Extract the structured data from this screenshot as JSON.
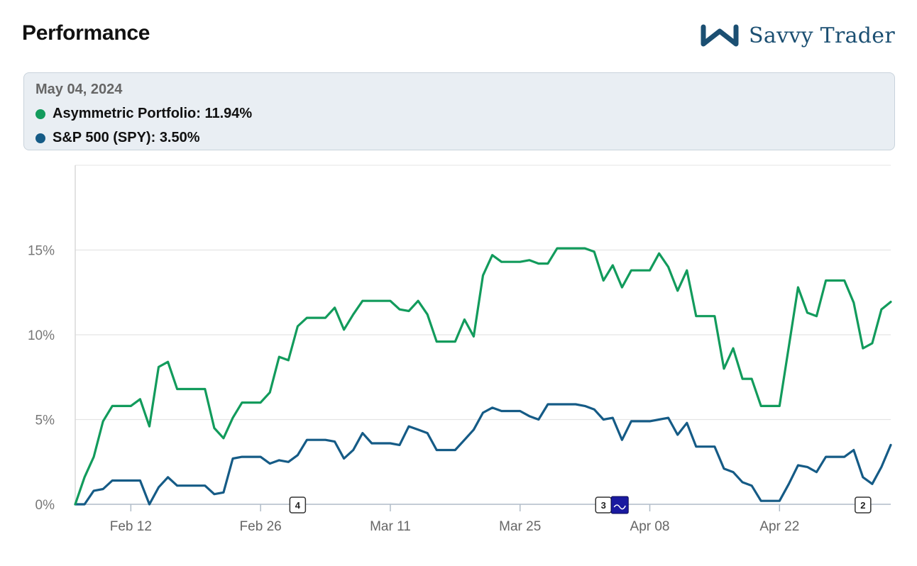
{
  "header": {
    "title": "Performance",
    "brand_name": "Savvy Trader",
    "brand_color": "#1b4f72"
  },
  "tooltip": {
    "date": "May 04, 2024",
    "series": [
      {
        "name": "Asymmetric Portfolio",
        "value": "11.94%",
        "color": "#129b5c"
      },
      {
        "name": "S&P 500 (SPY)",
        "value": "3.50%",
        "color": "#155b86"
      }
    ]
  },
  "chart_data": {
    "type": "line",
    "xlabel": "",
    "ylabel": "",
    "xlim": [
      "2024-02-06",
      "2024-05-04"
    ],
    "ylim": [
      0,
      20
    ],
    "y_ticks": [
      0,
      5,
      10,
      15
    ],
    "y_tick_labels": [
      "0%",
      "5%",
      "10%",
      "15%"
    ],
    "x_ticks": [
      "2024-02-12",
      "2024-02-26",
      "2024-03-11",
      "2024-03-25",
      "2024-04-08",
      "2024-04-22"
    ],
    "x_tick_labels": [
      "Feb 12",
      "Feb 26",
      "Mar 11",
      "Mar 25",
      "Apr 08",
      "Apr 22"
    ],
    "grid": "horizontal",
    "legend": "top",
    "series": [
      {
        "name": "Asymmetric Portfolio",
        "color": "#129b5c",
        "points": [
          [
            "2024-02-06",
            0
          ],
          [
            "2024-02-07",
            1.6
          ],
          [
            "2024-02-08",
            2.8
          ],
          [
            "2024-02-09",
            4.9
          ],
          [
            "2024-02-10",
            5.8
          ],
          [
            "2024-02-11",
            5.8
          ],
          [
            "2024-02-12",
            5.8
          ],
          [
            "2024-02-13",
            6.2
          ],
          [
            "2024-02-14",
            4.6
          ],
          [
            "2024-02-15",
            8.1
          ],
          [
            "2024-02-16",
            8.4
          ],
          [
            "2024-02-17",
            6.8
          ],
          [
            "2024-02-18",
            6.8
          ],
          [
            "2024-02-19",
            6.8
          ],
          [
            "2024-02-20",
            6.8
          ],
          [
            "2024-02-21",
            4.5
          ],
          [
            "2024-02-22",
            3.9
          ],
          [
            "2024-02-23",
            5.1
          ],
          [
            "2024-02-24",
            6.0
          ],
          [
            "2024-02-25",
            6.0
          ],
          [
            "2024-02-26",
            6.0
          ],
          [
            "2024-02-27",
            6.6
          ],
          [
            "2024-02-28",
            8.7
          ],
          [
            "2024-02-29",
            8.5
          ],
          [
            "2024-03-01",
            10.5
          ],
          [
            "2024-03-02",
            11.0
          ],
          [
            "2024-03-03",
            11.0
          ],
          [
            "2024-03-04",
            11.0
          ],
          [
            "2024-03-05",
            11.6
          ],
          [
            "2024-03-06",
            10.3
          ],
          [
            "2024-03-07",
            11.2
          ],
          [
            "2024-03-08",
            12.0
          ],
          [
            "2024-03-09",
            12.0
          ],
          [
            "2024-03-10",
            12.0
          ],
          [
            "2024-03-11",
            12.0
          ],
          [
            "2024-03-12",
            11.5
          ],
          [
            "2024-03-13",
            11.4
          ],
          [
            "2024-03-14",
            12.0
          ],
          [
            "2024-03-15",
            11.2
          ],
          [
            "2024-03-16",
            9.6
          ],
          [
            "2024-03-17",
            9.6
          ],
          [
            "2024-03-18",
            9.6
          ],
          [
            "2024-03-19",
            10.9
          ],
          [
            "2024-03-20",
            9.9
          ],
          [
            "2024-03-21",
            13.5
          ],
          [
            "2024-03-22",
            14.7
          ],
          [
            "2024-03-23",
            14.3
          ],
          [
            "2024-03-24",
            14.3
          ],
          [
            "2024-03-25",
            14.3
          ],
          [
            "2024-03-26",
            14.4
          ],
          [
            "2024-03-27",
            14.2
          ],
          [
            "2024-03-28",
            14.2
          ],
          [
            "2024-03-29",
            15.1
          ],
          [
            "2024-03-30",
            15.1
          ],
          [
            "2024-03-31",
            15.1
          ],
          [
            "2024-04-01",
            15.1
          ],
          [
            "2024-04-02",
            14.9
          ],
          [
            "2024-04-03",
            13.2
          ],
          [
            "2024-04-04",
            14.1
          ],
          [
            "2024-04-05",
            12.8
          ],
          [
            "2024-04-06",
            13.8
          ],
          [
            "2024-04-07",
            13.8
          ],
          [
            "2024-04-08",
            13.8
          ],
          [
            "2024-04-09",
            14.8
          ],
          [
            "2024-04-10",
            14.0
          ],
          [
            "2024-04-11",
            12.6
          ],
          [
            "2024-04-12",
            13.8
          ],
          [
            "2024-04-13",
            11.1
          ],
          [
            "2024-04-14",
            11.1
          ],
          [
            "2024-04-15",
            11.1
          ],
          [
            "2024-04-16",
            8.0
          ],
          [
            "2024-04-17",
            9.2
          ],
          [
            "2024-04-18",
            7.4
          ],
          [
            "2024-04-19",
            7.4
          ],
          [
            "2024-04-20",
            5.8
          ],
          [
            "2024-04-21",
            5.8
          ],
          [
            "2024-04-22",
            5.8
          ],
          [
            "2024-04-23",
            9.3
          ],
          [
            "2024-04-24",
            12.8
          ],
          [
            "2024-04-25",
            11.3
          ],
          [
            "2024-04-26",
            11.1
          ],
          [
            "2024-04-27",
            13.2
          ],
          [
            "2024-04-28",
            13.2
          ],
          [
            "2024-04-29",
            13.2
          ],
          [
            "2024-04-30",
            11.9
          ],
          [
            "2024-05-01",
            9.2
          ],
          [
            "2024-05-02",
            9.5
          ],
          [
            "2024-05-03",
            11.5
          ],
          [
            "2024-05-04",
            11.94
          ]
        ]
      },
      {
        "name": "S&P 500 (SPY)",
        "color": "#155b86",
        "points": [
          [
            "2024-02-06",
            0
          ],
          [
            "2024-02-07",
            0
          ],
          [
            "2024-02-08",
            0.8
          ],
          [
            "2024-02-09",
            0.9
          ],
          [
            "2024-02-10",
            1.4
          ],
          [
            "2024-02-11",
            1.4
          ],
          [
            "2024-02-12",
            1.4
          ],
          [
            "2024-02-13",
            1.4
          ],
          [
            "2024-02-14",
            0.0
          ],
          [
            "2024-02-15",
            1.0
          ],
          [
            "2024-02-16",
            1.6
          ],
          [
            "2024-02-17",
            1.1
          ],
          [
            "2024-02-18",
            1.1
          ],
          [
            "2024-02-19",
            1.1
          ],
          [
            "2024-02-20",
            1.1
          ],
          [
            "2024-02-21",
            0.6
          ],
          [
            "2024-02-22",
            0.7
          ],
          [
            "2024-02-23",
            2.7
          ],
          [
            "2024-02-24",
            2.8
          ],
          [
            "2024-02-25",
            2.8
          ],
          [
            "2024-02-26",
            2.8
          ],
          [
            "2024-02-27",
            2.4
          ],
          [
            "2024-02-28",
            2.6
          ],
          [
            "2024-02-29",
            2.5
          ],
          [
            "2024-03-01",
            2.9
          ],
          [
            "2024-03-02",
            3.8
          ],
          [
            "2024-03-03",
            3.8
          ],
          [
            "2024-03-04",
            3.8
          ],
          [
            "2024-03-05",
            3.7
          ],
          [
            "2024-03-06",
            2.7
          ],
          [
            "2024-03-07",
            3.2
          ],
          [
            "2024-03-08",
            4.2
          ],
          [
            "2024-03-09",
            3.6
          ],
          [
            "2024-03-10",
            3.6
          ],
          [
            "2024-03-11",
            3.6
          ],
          [
            "2024-03-12",
            3.5
          ],
          [
            "2024-03-13",
            4.6
          ],
          [
            "2024-03-14",
            4.4
          ],
          [
            "2024-03-15",
            4.2
          ],
          [
            "2024-03-16",
            3.2
          ],
          [
            "2024-03-17",
            3.2
          ],
          [
            "2024-03-18",
            3.2
          ],
          [
            "2024-03-19",
            3.8
          ],
          [
            "2024-03-20",
            4.4
          ],
          [
            "2024-03-21",
            5.4
          ],
          [
            "2024-03-22",
            5.7
          ],
          [
            "2024-03-23",
            5.5
          ],
          [
            "2024-03-24",
            5.5
          ],
          [
            "2024-03-25",
            5.5
          ],
          [
            "2024-03-26",
            5.2
          ],
          [
            "2024-03-27",
            5.0
          ],
          [
            "2024-03-28",
            5.9
          ],
          [
            "2024-03-29",
            5.9
          ],
          [
            "2024-03-30",
            5.9
          ],
          [
            "2024-03-31",
            5.9
          ],
          [
            "2024-04-01",
            5.8
          ],
          [
            "2024-04-02",
            5.6
          ],
          [
            "2024-04-03",
            5.0
          ],
          [
            "2024-04-04",
            5.1
          ],
          [
            "2024-04-05",
            3.8
          ],
          [
            "2024-04-06",
            4.9
          ],
          [
            "2024-04-07",
            4.9
          ],
          [
            "2024-04-08",
            4.9
          ],
          [
            "2024-04-09",
            5.0
          ],
          [
            "2024-04-10",
            5.1
          ],
          [
            "2024-04-11",
            4.1
          ],
          [
            "2024-04-12",
            4.8
          ],
          [
            "2024-04-13",
            3.4
          ],
          [
            "2024-04-14",
            3.4
          ],
          [
            "2024-04-15",
            3.4
          ],
          [
            "2024-04-16",
            2.1
          ],
          [
            "2024-04-17",
            1.9
          ],
          [
            "2024-04-18",
            1.3
          ],
          [
            "2024-04-19",
            1.1
          ],
          [
            "2024-04-20",
            0.2
          ],
          [
            "2024-04-21",
            0.2
          ],
          [
            "2024-04-22",
            0.2
          ],
          [
            "2024-04-23",
            1.2
          ],
          [
            "2024-04-24",
            2.3
          ],
          [
            "2024-04-25",
            2.2
          ],
          [
            "2024-04-26",
            1.9
          ],
          [
            "2024-04-27",
            2.8
          ],
          [
            "2024-04-28",
            2.8
          ],
          [
            "2024-04-29",
            2.8
          ],
          [
            "2024-04-30",
            3.2
          ],
          [
            "2024-05-01",
            1.6
          ],
          [
            "2024-05-02",
            1.2
          ],
          [
            "2024-05-03",
            2.2
          ],
          [
            "2024-05-04",
            3.5
          ]
        ]
      }
    ],
    "annotations": [
      {
        "date": "2024-03-01",
        "label": "4"
      },
      {
        "date": "2024-04-03",
        "label": "3",
        "logo": true
      },
      {
        "date": "2024-05-01",
        "label": "2"
      }
    ]
  }
}
